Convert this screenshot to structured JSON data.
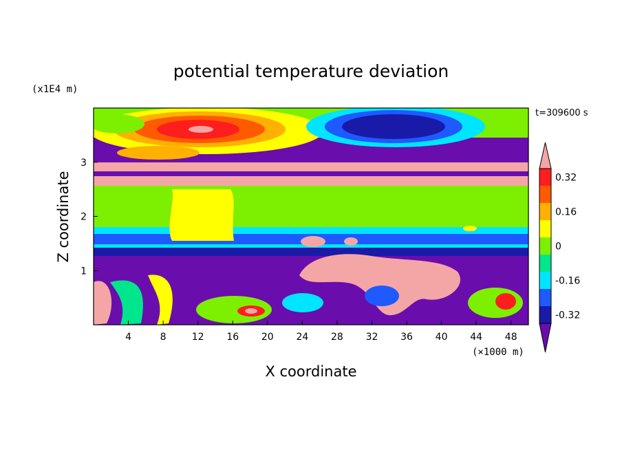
{
  "chart_data": {
    "type": "heatmap",
    "title": "potential temperature deviation",
    "time_label": "t=309600 s",
    "xlabel": "X coordinate",
    "ylabel": "Z coordinate",
    "x_unit": "(×1000 m)",
    "y_unit": "(x1E4 m)",
    "xlim": [
      0,
      50
    ],
    "ylim": [
      0,
      4
    ],
    "x_ticks": [
      "4",
      "8",
      "12",
      "16",
      "20",
      "24",
      "28",
      "32",
      "36",
      "40",
      "44",
      "48"
    ],
    "y_ticks": [
      "1",
      "2",
      "3"
    ],
    "colorbar": {
      "labels": [
        "0.32",
        "0.16",
        "0",
        "-0.16",
        "-0.32"
      ],
      "levels": [
        -0.4,
        -0.32,
        -0.24,
        -0.16,
        -0.08,
        0,
        0.08,
        0.16,
        0.24,
        0.32,
        0.4
      ],
      "colors": [
        "#6a0dad",
        "#1a1aa8",
        "#1e5aff",
        "#00e5ff",
        "#00e68c",
        "#7cf000",
        "#ffff00",
        "#ffb000",
        "#ff5a00",
        "#ff1e1e",
        "#f4a6a6"
      ]
    }
  }
}
